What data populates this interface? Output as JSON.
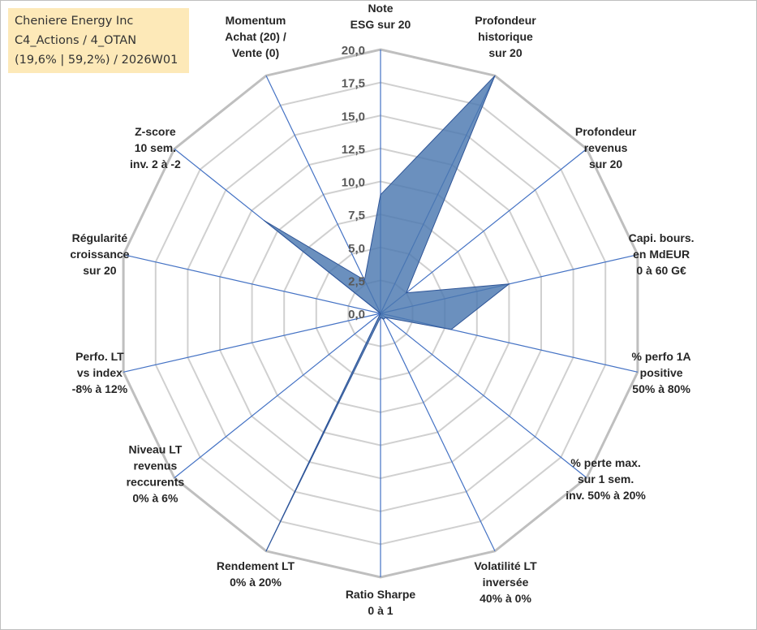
{
  "info": {
    "line1": "Cheniere Energy Inc",
    "line2": "C4_Actions / 4_OTAN",
    "line3": "(19,6% | 59,2%) / 2026W01"
  },
  "colors": {
    "series_fill": "#4a78b0",
    "series_stroke": "#2f5597",
    "spoke": "#4472c4",
    "grid": "#d0d0d0",
    "outer_ring": "#bfbfbf"
  },
  "chart_data": {
    "type": "radar",
    "rmin": 0,
    "rmax": 20,
    "tick_step": 2.5,
    "ticks": [
      "0,0",
      "2,5",
      "5,0",
      "7,5",
      "10,0",
      "12,5",
      "15,0",
      "17,5",
      "20,0"
    ],
    "axes": [
      {
        "lines": [
          "Note",
          "ESG sur 20"
        ],
        "value": 9
      },
      {
        "lines": [
          "Profondeur",
          "historique",
          "sur 20"
        ],
        "value": 20
      },
      {
        "lines": [
          "Profondeur",
          "revenus",
          "sur 20"
        ],
        "value": 2.5
      },
      {
        "lines": [
          "Capi. bours.",
          "en MdEUR",
          "0 à 60 G€"
        ],
        "value": 10
      },
      {
        "lines": [
          "% perfo 1A",
          "positive",
          "50% à 80%"
        ],
        "value": 5.5
      },
      {
        "lines": [
          "% perte max.",
          "sur 1 sem.",
          "inv. 50% à 20%"
        ],
        "value": 0.5
      },
      {
        "lines": [
          "Volatilité LT",
          "inversée",
          "40% à 0%"
        ],
        "value": 0.5
      },
      {
        "lines": [
          "Ratio Sharpe",
          "0 à 1"
        ],
        "value": 0.3
      },
      {
        "lines": [
          "Rendement LT",
          "0% à 20%"
        ],
        "value": 20
      },
      {
        "lines": [
          "Niveau LT",
          "revenus",
          "reccurents",
          "0% à 6%"
        ],
        "value": 0
      },
      {
        "lines": [
          "Perfo. LT",
          "vs index",
          "-8% à 12%"
        ],
        "value": 0
      },
      {
        "lines": [
          "Régularité",
          "croissance",
          "sur 20"
        ],
        "value": 0
      },
      {
        "lines": [
          "Z-score",
          "10 sem.",
          "inv. 2 à -2"
        ],
        "value": 11.3
      },
      {
        "lines": [
          "Momentum",
          "Achat (20) /",
          "Vente (0)"
        ],
        "value": 2.8
      }
    ]
  }
}
